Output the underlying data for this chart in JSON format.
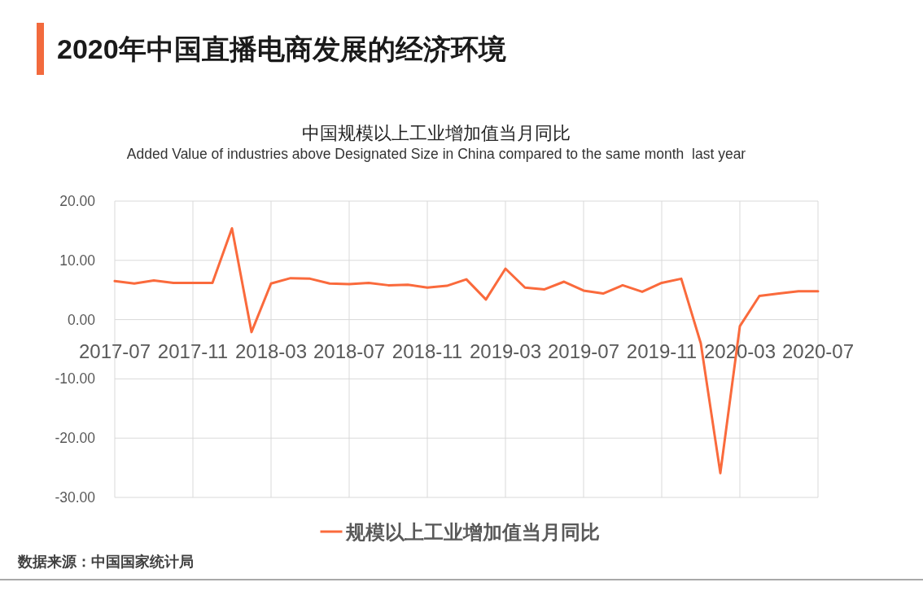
{
  "chart_data": {
    "type": "line",
    "title": "2020年中国直播电商发展的经济环境",
    "subtitle": "中国规模以上工业增加值当月同比",
    "annotations": [
      "Added Value of industries above Designated Size in China compared to the same month  last year",
      "数据来源：中国国家统计局"
    ],
    "x": [
      "2017-07",
      "2017-08",
      "2017-09",
      "2017-10",
      "2017-11",
      "2017-12",
      "2018-01",
      "2018-02",
      "2018-03",
      "2018-04",
      "2018-05",
      "2018-06",
      "2018-07",
      "2018-08",
      "2018-09",
      "2018-10",
      "2018-11",
      "2018-12",
      "2019-01",
      "2019-02",
      "2019-03",
      "2019-04",
      "2019-05",
      "2019-06",
      "2019-07",
      "2019-08",
      "2019-09",
      "2019-10",
      "2019-11",
      "2019-12",
      "2020-01",
      "2020-02",
      "2020-03",
      "2020-04",
      "2020-05",
      "2020-06",
      "2020-07"
    ],
    "series": [
      {
        "name": "规模以上工业增加值当月同比",
        "color": "#fa6a3c",
        "values": [
          6.5,
          6.1,
          6.6,
          6.2,
          6.2,
          6.2,
          15.4,
          -2.1,
          6.1,
          7.0,
          6.9,
          6.1,
          6.0,
          6.2,
          5.8,
          5.9,
          5.4,
          5.7,
          6.8,
          3.4,
          8.6,
          5.4,
          5.1,
          6.4,
          4.9,
          4.4,
          5.8,
          4.7,
          6.2,
          6.9,
          -4.0,
          -25.9,
          -1.1,
          4.0,
          4.4,
          4.8,
          4.8
        ]
      }
    ],
    "xlim": [
      "2017-07",
      "2020-07"
    ],
    "xticks": [
      "2017-07",
      "2017-11",
      "2018-03",
      "2018-07",
      "2018-11",
      "2019-03",
      "2019-07",
      "2019-11",
      "2020-03",
      "2020-07"
    ],
    "ylim": [
      -30,
      20
    ],
    "yticks": [
      {
        "value": 20,
        "label": "20.00"
      },
      {
        "value": 10,
        "label": "10.00"
      },
      {
        "value": 0,
        "label": "0.00"
      },
      {
        "value": -10,
        "label": "-10.00"
      },
      {
        "value": -20,
        "label": "-20.00"
      },
      {
        "value": -30,
        "label": "-30.00"
      }
    ],
    "grid": true,
    "legend": "bottom"
  }
}
